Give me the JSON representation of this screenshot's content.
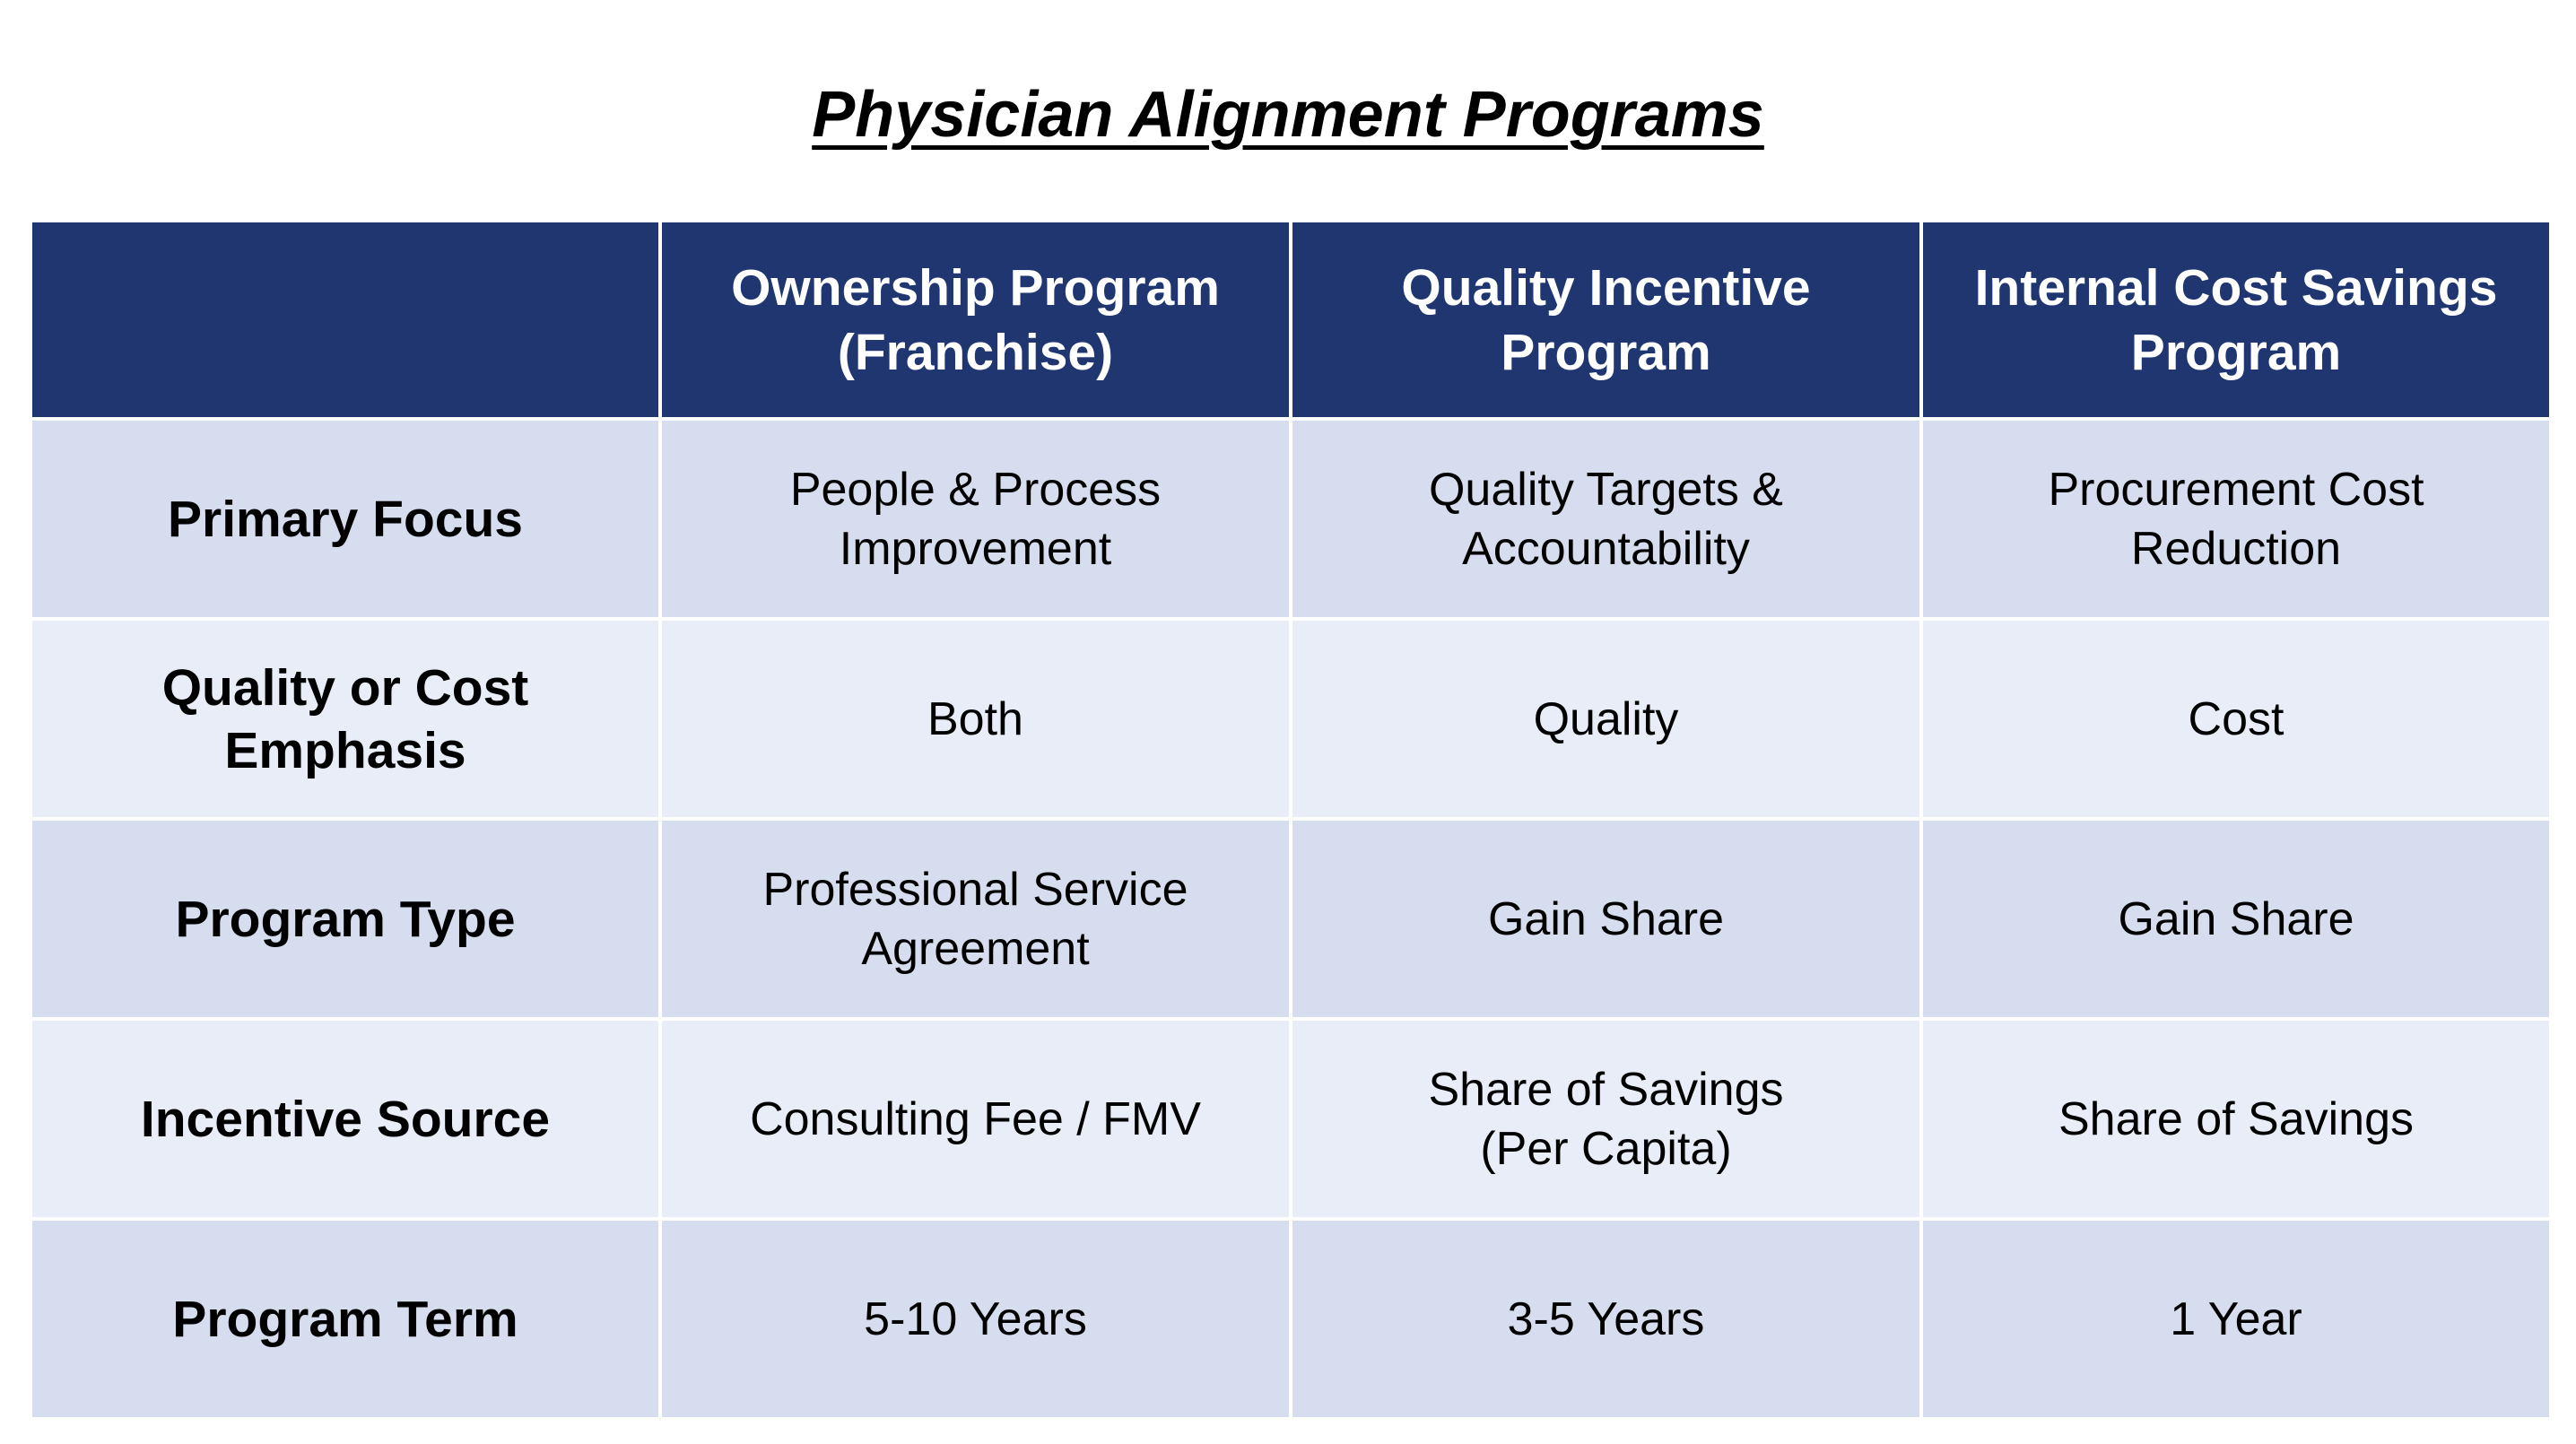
{
  "title": "Physician Alignment Programs",
  "colors": {
    "header_bg": "#1f3670",
    "header_text": "#ffffff",
    "row_dark": "#d5ddee",
    "row_light": "#e8edf7"
  },
  "table": {
    "headers": [
      "",
      "Ownership Program\n(Franchise)",
      "Quality Incentive\nProgram",
      "Internal Cost Savings\nProgram"
    ],
    "rows": [
      {
        "label": "Primary Focus",
        "cells": [
          "People & Process\nImprovement",
          "Quality Targets &\nAccountability",
          "Procurement Cost\nReduction"
        ]
      },
      {
        "label": "Quality or Cost\nEmphasis",
        "cells": [
          "Both",
          "Quality",
          "Cost"
        ]
      },
      {
        "label": "Program Type",
        "cells": [
          "Professional Service\nAgreement",
          "Gain Share",
          "Gain Share"
        ]
      },
      {
        "label": "Incentive Source",
        "cells": [
          "Consulting Fee / FMV",
          "Share of Savings\n(Per Capita)",
          "Share of Savings"
        ]
      },
      {
        "label": "Program Term",
        "cells": [
          "5-10 Years",
          "3-5 Years",
          "1 Year"
        ]
      }
    ]
  }
}
